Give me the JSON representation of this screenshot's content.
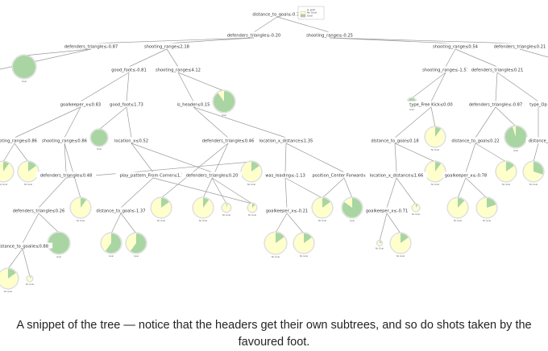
{
  "colors": {
    "goal": "#a8d5a2",
    "no_goal": "#ffffcc",
    "edge": "#9a9a9a"
  },
  "tree": {
    "legend": {
      "title": "is_goal",
      "items": [
        {
          "label": "No Goal",
          "color": "#ffffcc"
        },
        {
          "label": "Goal",
          "color": "#a8d5a2"
        }
      ]
    },
    "splits": [
      {
        "id": "n0",
        "text": "distance_to_goal≤-0.79"
      },
      {
        "id": "n1",
        "text": "defenders_triangle≤-0.20"
      },
      {
        "id": "n2",
        "text": "shooting_range≤-0.25"
      },
      {
        "id": "n3",
        "text": "defenders_triangle≤-0.87"
      },
      {
        "id": "n4",
        "text": "shooting_range≤2.18"
      },
      {
        "id": "n5",
        "text": "shooting_range≤0.54"
      },
      {
        "id": "n6",
        "text": "defenders_triangle≤0.21"
      },
      {
        "id": "n7",
        "text": "good_foot≤-0.81"
      },
      {
        "id": "n8",
        "text": "shooting_range≤4.12"
      },
      {
        "id": "n9",
        "text": "shooting_range≤-1.57"
      },
      {
        "id": "n10",
        "text": "defenders_triangle≤0.21"
      },
      {
        "id": "n11",
        "text": "goalkeeper_x≤0.83"
      },
      {
        "id": "n12",
        "text": "good_foot≤1.73"
      },
      {
        "id": "n13",
        "text": "is_header≤0.15"
      },
      {
        "id": "n14",
        "text": "type_Free Kick≤0.00"
      },
      {
        "id": "n15",
        "text": "defenders_triangle≤-0.87"
      },
      {
        "id": "n16",
        "text": "type_Op"
      },
      {
        "id": "n17",
        "text": "shooting_range≤0.86"
      },
      {
        "id": "n18",
        "text": "shooting_range≤0.86"
      },
      {
        "id": "n19",
        "text": "location_x≤0.52"
      },
      {
        "id": "n20",
        "text": "defenders_triangle≤0.46"
      },
      {
        "id": "n21",
        "text": "location_x_distance≤1.35"
      },
      {
        "id": "n22",
        "text": "distance_to_goal≤0.18"
      },
      {
        "id": "n23",
        "text": "distance_to_goal≤0.22"
      },
      {
        "id": "n24",
        "text": "distance_"
      },
      {
        "id": "n25",
        "text": "defenders_triangle≤0.48"
      },
      {
        "id": "n26",
        "text": "play_pattern_From Corner≤1.71"
      },
      {
        "id": "n27",
        "text": "defenders_triangle≤0.20"
      },
      {
        "id": "n28",
        "text": "was_leading≤-1.13"
      },
      {
        "id": "n29",
        "text": "position_Center Forward≤0.03"
      },
      {
        "id": "n30",
        "text": "location_x_distance≤1.66"
      },
      {
        "id": "n31",
        "text": "goalkeeper_x≤-0.78"
      },
      {
        "id": "n32",
        "text": "defenders_triangle≤0.26"
      },
      {
        "id": "n33",
        "text": "distance_to_goal≤-1.37"
      },
      {
        "id": "n34",
        "text": "goalkeeper_x≤-0.21"
      },
      {
        "id": "n35",
        "text": "goalkeeper_x≤-0.71"
      },
      {
        "id": "n36",
        "text": "distance_to_goalie≤0.88"
      }
    ],
    "leaves": [
      {
        "id": "L1",
        "goal_share": 1.0,
        "tag": "Goal"
      },
      {
        "id": "L2",
        "goal_share": 0.9,
        "tag": "Goal"
      },
      {
        "id": "L3",
        "goal_share": 1.0,
        "tag": "Goal"
      },
      {
        "id": "L4",
        "goal_share": 0.1,
        "tag": "No Goal"
      },
      {
        "id": "L5",
        "goal_share": 0.15,
        "tag": "No Goal"
      },
      {
        "id": "L6",
        "goal_share": 0.1,
        "tag": "No Goal"
      },
      {
        "id": "L7",
        "goal_share": 1.0,
        "tag": "Goal"
      },
      {
        "id": "L8",
        "goal_share": 0.1,
        "tag": "No Goal"
      },
      {
        "id": "L9",
        "goal_share": 0.1,
        "tag": "No Goal"
      },
      {
        "id": "L10",
        "goal_share": 0.15,
        "tag": "No Goal"
      },
      {
        "id": "L11",
        "goal_share": 0.3,
        "tag": "No Goal"
      },
      {
        "id": "L12",
        "goal_share": 0.12,
        "tag": "No Goal"
      },
      {
        "id": "L13",
        "goal_share": 0.2,
        "tag": "No Goal"
      },
      {
        "id": "L14",
        "goal_share": 0.95,
        "tag": "Goal"
      },
      {
        "id": "L15",
        "goal_share": 0.15,
        "tag": "No Goal"
      },
      {
        "id": "L16",
        "goal_share": 0.15,
        "tag": "No Goal"
      },
      {
        "id": "L17",
        "goal_share": 0.1,
        "tag": "No Goal"
      },
      {
        "id": "L18",
        "goal_share": 0.12,
        "tag": "No Goal"
      },
      {
        "id": "L19",
        "goal_share": 0.05,
        "tag": "No Goal"
      },
      {
        "id": "L20",
        "goal_share": 0.15,
        "tag": "No Goal"
      },
      {
        "id": "L21",
        "goal_share": 0.85,
        "tag": "Goal"
      },
      {
        "id": "L22",
        "goal_share": 0.1,
        "tag": "No Goal"
      },
      {
        "id": "L23",
        "goal_share": 0.6,
        "tag": "Goal"
      },
      {
        "id": "L24",
        "goal_share": 0.6,
        "tag": "Goal"
      },
      {
        "id": "L25",
        "goal_share": 0.15,
        "tag": "No Goal"
      },
      {
        "id": "L26",
        "goal_share": 0.15,
        "tag": "No Goal"
      },
      {
        "id": "L27",
        "goal_share": 0.15,
        "tag": "No Goal"
      },
      {
        "id": "L28",
        "goal_share": 0.2,
        "tag": "No Goal"
      },
      {
        "id": "L29",
        "goal_share": 1.0,
        "tag": "Goal"
      },
      {
        "id": "L30",
        "goal_share": 0.15,
        "tag": "No Goal"
      },
      {
        "id": "L31",
        "goal_share": 0.1,
        "tag": "No Goal"
      },
      {
        "id": "L32",
        "goal_share": 0.1,
        "tag": "No Goal"
      },
      {
        "id": "L33",
        "goal_share": 0.12,
        "tag": "No Goal"
      },
      {
        "id": "L34",
        "goal_share": 0.6,
        "tag": "Goal"
      },
      {
        "id": "L35",
        "goal_share": 0.1,
        "tag": "No Goal"
      },
      {
        "id": "L36",
        "goal_share": 0.1,
        "tag": "No Goal"
      },
      {
        "id": "L37",
        "goal_share": 0.9,
        "tag": "Goal"
      },
      {
        "id": "L38",
        "goal_share": 0.1,
        "tag": "No Goal"
      },
      {
        "id": "L39",
        "goal_share": 0.9,
        "tag": "Goal"
      }
    ]
  },
  "caption": "A snippet of the tree — notice that the headers get their own subtrees, and so do shots taken by the favoured foot."
}
